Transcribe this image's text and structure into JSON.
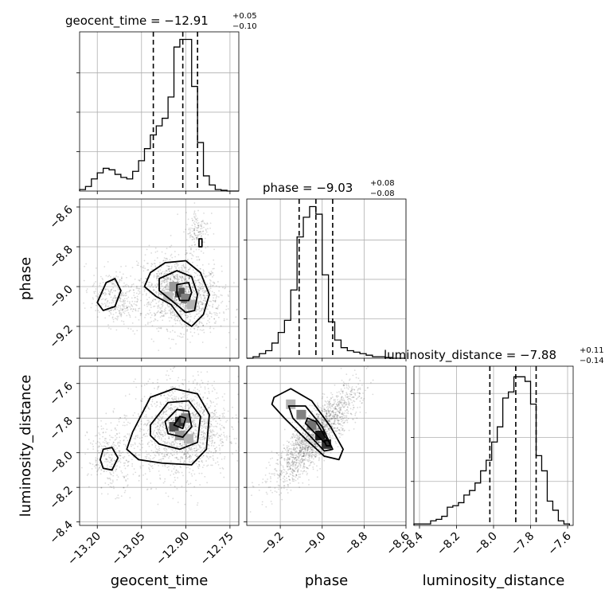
{
  "figure": {
    "type": "corner-plot",
    "parameters": [
      "geocent_time",
      "phase",
      "luminosity_distance"
    ],
    "titles": [
      {
        "label": "geocent_time = −12.91",
        "plus": "+0.05",
        "minus": "−0.10"
      },
      {
        "label": "phase = −9.03",
        "plus": "+0.08",
        "minus": "−0.08"
      },
      {
        "label": "luminosity_distance = −7.88",
        "plus": "+0.11",
        "minus": "−0.14"
      }
    ],
    "axis_labels": {
      "x": [
        "geocent_time",
        "phase",
        "luminosity_distance"
      ],
      "y": [
        "phase",
        "luminosity_distance"
      ]
    }
  },
  "chart_data": [
    {
      "type": "histogram",
      "parameter": "geocent_time",
      "xlim": [
        -13.26,
        -12.72
      ],
      "xticks": [
        -13.2,
        -13.05,
        -12.9,
        -12.75
      ],
      "xtick_labels": [
        "−13.20",
        "−13.05",
        "−12.90",
        "−12.75"
      ],
      "ylim": [
        0,
        1
      ],
      "bins": [
        -13.26,
        -13.24,
        -13.22,
        -13.2,
        -13.18,
        -13.16,
        -13.14,
        -13.12,
        -13.1,
        -13.08,
        -13.06,
        -13.04,
        -13.02,
        -13.0,
        -12.98,
        -12.96,
        -12.94,
        -12.92,
        -12.9,
        -12.88,
        -12.86,
        -12.84,
        -12.82,
        -12.8,
        -12.78,
        -12.76,
        -12.74,
        -12.72
      ],
      "counts": [
        0.01,
        0.03,
        0.08,
        0.12,
        0.15,
        0.14,
        0.11,
        0.09,
        0.08,
        0.13,
        0.2,
        0.28,
        0.37,
        0.43,
        0.48,
        0.62,
        0.95,
        1.0,
        1.0,
        0.69,
        0.32,
        0.1,
        0.04,
        0.01,
        0.005,
        0.0,
        0.0
      ],
      "quantiles": [
        -13.01,
        -12.91,
        -12.86
      ],
      "yticks": [
        0,
        0.26,
        0.52,
        0.78
      ]
    },
    {
      "type": "histogram",
      "parameter": "phase",
      "xlim": [
        -9.36,
        -8.6
      ],
      "xticks": [
        -9.2,
        -9.0,
        -8.8,
        -8.6
      ],
      "xtick_labels": [
        "−9.2",
        "−9.0",
        "−8.8",
        "−8.6"
      ],
      "ylim": [
        0,
        1
      ],
      "bins": [
        -9.36,
        -9.33,
        -9.3,
        -9.27,
        -9.24,
        -9.21,
        -9.18,
        -9.15,
        -9.12,
        -9.09,
        -9.06,
        -9.03,
        -9.0,
        -8.97,
        -8.94,
        -8.91,
        -8.88,
        -8.85,
        -8.82,
        -8.79,
        -8.76,
        -8.73,
        -8.7,
        -8.67,
        -8.64,
        -8.61
      ],
      "counts": [
        0.0,
        0.01,
        0.03,
        0.05,
        0.1,
        0.17,
        0.25,
        0.45,
        0.8,
        0.93,
        1.0,
        0.95,
        0.55,
        0.24,
        0.12,
        0.07,
        0.05,
        0.04,
        0.03,
        0.02,
        0.01,
        0.01,
        0.005,
        0.0,
        0.0
      ],
      "quantiles": [
        -9.11,
        -9.03,
        -8.95
      ],
      "yticks": [
        0,
        0.26,
        0.52,
        0.78
      ]
    },
    {
      "type": "histogram",
      "parameter": "luminosity_distance",
      "xlim": [
        -8.43,
        -7.57
      ],
      "xticks": [
        -8.4,
        -8.2,
        -8.0,
        -7.8,
        -7.6
      ],
      "xtick_labels": [
        "−8.4",
        "−8.2",
        "−8.0",
        "−7.8",
        "−7.6"
      ],
      "ylim": [
        0,
        1
      ],
      "bins": [
        -8.43,
        -8.4,
        -8.37,
        -8.34,
        -8.31,
        -8.28,
        -8.25,
        -8.22,
        -8.19,
        -8.16,
        -8.13,
        -8.1,
        -8.07,
        -8.04,
        -8.01,
        -7.98,
        -7.95,
        -7.92,
        -7.89,
        -7.86,
        -7.83,
        -7.8,
        -7.77,
        -7.74,
        -7.71,
        -7.68,
        -7.65,
        -7.62,
        -7.59
      ],
      "counts": [
        0.01,
        0.01,
        0.01,
        0.03,
        0.04,
        0.06,
        0.12,
        0.13,
        0.15,
        0.2,
        0.23,
        0.28,
        0.36,
        0.43,
        0.55,
        0.65,
        0.84,
        0.88,
        0.98,
        0.98,
        0.95,
        0.8,
        0.46,
        0.36,
        0.16,
        0.1,
        0.03,
        0.01
      ],
      "quantiles": [
        -8.02,
        -7.88,
        -7.77
      ],
      "yticks": [
        0,
        0.29,
        0.58,
        0.87
      ]
    },
    {
      "type": "scatter-density",
      "x_parameter": "geocent_time",
      "y_parameter": "phase",
      "xlim": [
        -13.26,
        -12.72
      ],
      "ylim": [
        -9.36,
        -8.56
      ],
      "yticks": [
        -8.6,
        -8.8,
        -9.0,
        -9.2
      ],
      "ytick_labels": [
        "−8.6",
        "−8.8",
        "−9.0",
        "−9.2"
      ],
      "clusters": [
        {
          "cx": -12.92,
          "cy": -9.04,
          "sx": 0.07,
          "sy": 0.09,
          "rho": -0.2,
          "n": 1400
        },
        {
          "cx": -13.14,
          "cy": -9.06,
          "sx": 0.04,
          "sy": 0.07,
          "rho": -0.3,
          "n": 320
        },
        {
          "cx": -12.86,
          "cy": -8.72,
          "sx": 0.02,
          "sy": 0.06,
          "rho": 0.2,
          "n": 160
        }
      ],
      "contours": [
        [
          [
            -13.02,
            -8.93
          ],
          [
            -12.97,
            -8.88
          ],
          [
            -12.9,
            -8.87
          ],
          [
            -12.85,
            -8.93
          ],
          [
            -12.82,
            -9.04
          ],
          [
            -12.84,
            -9.14
          ],
          [
            -12.88,
            -9.2
          ],
          [
            -12.91,
            -9.17
          ],
          [
            -12.95,
            -9.09
          ],
          [
            -13.0,
            -9.05
          ],
          [
            -13.04,
            -9.0
          ]
        ],
        [
          [
            -12.99,
            -8.96
          ],
          [
            -12.93,
            -8.92
          ],
          [
            -12.88,
            -8.95
          ],
          [
            -12.86,
            -9.04
          ],
          [
            -12.87,
            -9.12
          ],
          [
            -12.9,
            -9.13
          ],
          [
            -12.94,
            -9.08
          ],
          [
            -12.99,
            -9.02
          ]
        ],
        [
          [
            -12.93,
            -8.99
          ],
          [
            -12.89,
            -8.98
          ],
          [
            -12.88,
            -9.03
          ],
          [
            -12.89,
            -9.07
          ],
          [
            -12.92,
            -9.07
          ],
          [
            -12.93,
            -9.03
          ]
        ],
        [
          [
            -13.17,
            -8.98
          ],
          [
            -13.14,
            -8.96
          ],
          [
            -13.12,
            -9.02
          ],
          [
            -13.14,
            -9.1
          ],
          [
            -13.18,
            -9.12
          ],
          [
            -13.2,
            -9.08
          ]
        ],
        [
          [
            -12.855,
            -8.76
          ],
          [
            -12.845,
            -8.76
          ],
          [
            -12.845,
            -8.8
          ],
          [
            -12.855,
            -8.8
          ]
        ]
      ],
      "pixels": [
        {
          "x": -12.92,
          "y": -9.03,
          "shade": 0.7
        },
        {
          "x": -12.9,
          "y": -9.06,
          "shade": 0.5
        },
        {
          "x": -12.94,
          "y": -9.0,
          "shade": 0.4
        },
        {
          "x": -12.96,
          "y": -9.05,
          "shade": 0.25
        },
        {
          "x": -12.88,
          "y": -9.09,
          "shade": 0.3
        }
      ]
    },
    {
      "type": "scatter-density",
      "x_parameter": "geocent_time",
      "y_parameter": "luminosity_distance",
      "xlim": [
        -13.26,
        -12.72
      ],
      "ylim": [
        -8.42,
        -7.5
      ],
      "yticks": [
        -7.6,
        -7.8,
        -8.0,
        -8.2,
        -8.4
      ],
      "ytick_labels": [
        "−7.6",
        "−7.8",
        "−8.0",
        "−8.2",
        "−8.4"
      ],
      "clusters": [
        {
          "cx": -12.91,
          "cy": -7.87,
          "sx": 0.08,
          "sy": 0.14,
          "rho": 0.05,
          "n": 1500
        },
        {
          "cx": -13.15,
          "cy": -8.02,
          "sx": 0.04,
          "sy": 0.1,
          "rho": 0.0,
          "n": 320
        }
      ],
      "contours": [
        [
          [
            -13.08,
            -7.88
          ],
          [
            -13.02,
            -7.68
          ],
          [
            -12.94,
            -7.63
          ],
          [
            -12.86,
            -7.66
          ],
          [
            -12.82,
            -7.78
          ],
          [
            -12.83,
            -7.98
          ],
          [
            -12.88,
            -8.07
          ],
          [
            -12.98,
            -8.06
          ],
          [
            -13.06,
            -8.04
          ],
          [
            -13.1,
            -7.98
          ]
        ],
        [
          [
            -13.02,
            -7.84
          ],
          [
            -12.96,
            -7.71
          ],
          [
            -12.89,
            -7.7
          ],
          [
            -12.85,
            -7.79
          ],
          [
            -12.86,
            -7.94
          ],
          [
            -12.92,
            -7.98
          ],
          [
            -12.99,
            -7.95
          ],
          [
            -13.02,
            -7.9
          ]
        ],
        [
          [
            -12.97,
            -7.82
          ],
          [
            -12.93,
            -7.75
          ],
          [
            -12.89,
            -7.76
          ],
          [
            -12.88,
            -7.85
          ],
          [
            -12.91,
            -7.91
          ],
          [
            -12.96,
            -7.89
          ]
        ],
        [
          [
            -12.94,
            -7.84
          ],
          [
            -12.92,
            -7.79
          ],
          [
            -12.9,
            -7.8
          ],
          [
            -12.91,
            -7.86
          ]
        ],
        [
          [
            -13.18,
            -7.98
          ],
          [
            -13.15,
            -7.97
          ],
          [
            -13.13,
            -8.03
          ],
          [
            -13.15,
            -8.1
          ],
          [
            -13.18,
            -8.09
          ],
          [
            -13.19,
            -8.04
          ]
        ]
      ],
      "pixels": [
        {
          "x": -12.92,
          "y": -7.82,
          "shade": 0.8
        },
        {
          "x": -12.94,
          "y": -7.85,
          "shade": 0.7
        },
        {
          "x": -12.9,
          "y": -7.8,
          "shade": 0.5
        },
        {
          "x": -12.92,
          "y": -7.9,
          "shade": 0.4
        },
        {
          "x": -12.89,
          "y": -7.92,
          "shade": 0.3
        }
      ]
    },
    {
      "type": "scatter-density",
      "x_parameter": "phase",
      "y_parameter": "luminosity_distance",
      "xlim": [
        -9.36,
        -8.6
      ],
      "ylim": [
        -8.42,
        -7.5
      ],
      "clusters": [
        {
          "cx": -9.03,
          "cy": -7.9,
          "sx": 0.1,
          "sy": 0.14,
          "rho": 0.85,
          "n": 1800
        }
      ],
      "contours": [
        [
          [
            -9.23,
            -7.68
          ],
          [
            -9.15,
            -7.63
          ],
          [
            -9.05,
            -7.7
          ],
          [
            -8.96,
            -7.85
          ],
          [
            -8.9,
            -7.98
          ],
          [
            -8.92,
            -8.04
          ],
          [
            -8.99,
            -8.02
          ],
          [
            -9.08,
            -7.92
          ],
          [
            -9.18,
            -7.8
          ],
          [
            -9.24,
            -7.72
          ]
        ],
        [
          [
            -9.16,
            -7.73
          ],
          [
            -9.08,
            -7.73
          ],
          [
            -9.0,
            -7.85
          ],
          [
            -8.95,
            -7.98
          ],
          [
            -8.99,
            -7.99
          ],
          [
            -9.06,
            -7.9
          ],
          [
            -9.14,
            -7.8
          ]
        ],
        [
          [
            -9.07,
            -7.8
          ],
          [
            -9.03,
            -7.82
          ],
          [
            -8.98,
            -7.92
          ],
          [
            -8.99,
            -7.94
          ],
          [
            -9.04,
            -7.88
          ],
          [
            -9.08,
            -7.83
          ]
        ],
        [
          [
            -8.99,
            -7.93
          ],
          [
            -8.97,
            -7.93
          ],
          [
            -8.96,
            -7.96
          ],
          [
            -8.98,
            -7.96
          ]
        ]
      ],
      "pixels": [
        {
          "x": -9.1,
          "y": -7.78,
          "shade": 0.5
        },
        {
          "x": -9.05,
          "y": -7.84,
          "shade": 0.55
        },
        {
          "x": -9.01,
          "y": -7.9,
          "shade": 0.9
        },
        {
          "x": -8.98,
          "y": -7.95,
          "shade": 0.8
        },
        {
          "x": -9.15,
          "y": -7.72,
          "shade": 0.3
        }
      ]
    }
  ]
}
